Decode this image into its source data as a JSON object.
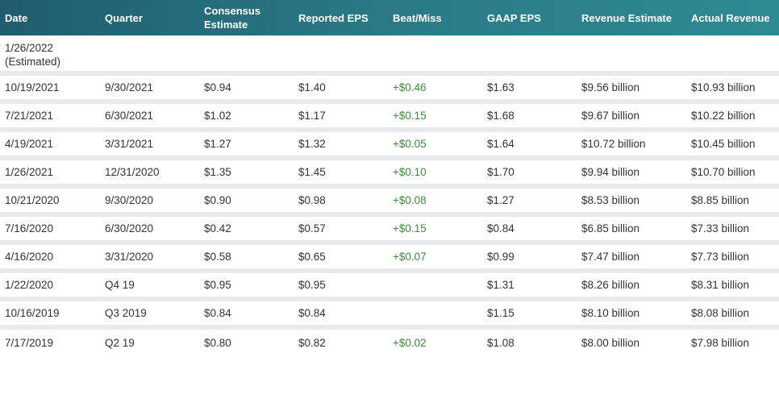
{
  "table": {
    "headers": {
      "date": "Date",
      "quarter": "Quarter",
      "consensus_line1": "Consensus",
      "consensus_line2": "Estimate",
      "reported_eps": "Reported EPS",
      "beat_miss": "Beat/Miss",
      "gaap_eps": "GAAP EPS",
      "revenue_estimate": "Revenue Estimate",
      "actual_revenue": "Actual Revenue"
    },
    "estimated_row": {
      "date": "1/26/2022",
      "note": "(Estimated)"
    },
    "rows": [
      {
        "date": "10/19/2021",
        "quarter": "9/30/2021",
        "consensus": "$0.94",
        "reported": "$1.40",
        "beat": "+$0.46",
        "gaap": "$1.63",
        "rev_est": "$9.56 billion",
        "actual_rev": "$10.93 billion"
      },
      {
        "date": "7/21/2021",
        "quarter": "6/30/2021",
        "consensus": "$1.02",
        "reported": "$1.17",
        "beat": "+$0.15",
        "gaap": "$1.68",
        "rev_est": "$9.67 billion",
        "actual_rev": "$10.22 billion"
      },
      {
        "date": "4/19/2021",
        "quarter": "3/31/2021",
        "consensus": "$1.27",
        "reported": "$1.32",
        "beat": "+$0.05",
        "gaap": "$1.64",
        "rev_est": "$10.72 billion",
        "actual_rev": "$10.45 billion"
      },
      {
        "date": "1/26/2021",
        "quarter": "12/31/2020",
        "consensus": "$1.35",
        "reported": "$1.45",
        "beat": "+$0.10",
        "gaap": "$1.70",
        "rev_est": "$9.94 billion",
        "actual_rev": "$10.70 billion"
      },
      {
        "date": "10/21/2020",
        "quarter": "9/30/2020",
        "consensus": "$0.90",
        "reported": "$0.98",
        "beat": "+$0.08",
        "gaap": "$1.27",
        "rev_est": "$8.53 billion",
        "actual_rev": "$8.85 billion"
      },
      {
        "date": "7/16/2020",
        "quarter": "6/30/2020",
        "consensus": "$0.42",
        "reported": "$0.57",
        "beat": "+$0.15",
        "gaap": "$0.84",
        "rev_est": "$6.85 billion",
        "actual_rev": "$7.33 billion"
      },
      {
        "date": "4/16/2020",
        "quarter": "3/31/2020",
        "consensus": "$0.58",
        "reported": "$0.65",
        "beat": "+$0.07",
        "gaap": "$0.99",
        "rev_est": "$7.47 billion",
        "actual_rev": "$7.73 billion"
      },
      {
        "date": "1/22/2020",
        "quarter": "Q4 19",
        "consensus": "$0.95",
        "reported": "$0.95",
        "beat": "",
        "gaap": "$1.31",
        "rev_est": "$8.26 billion",
        "actual_rev": "$8.31 billion"
      },
      {
        "date": "10/16/2019",
        "quarter": "Q3 2019",
        "consensus": "$0.84",
        "reported": "$0.84",
        "beat": "",
        "gaap": "$1.15",
        "rev_est": "$8.10 billion",
        "actual_rev": "$8.08 billion"
      },
      {
        "date": "7/17/2019",
        "quarter": "Q2 19",
        "consensus": "$0.80",
        "reported": "$0.82",
        "beat": "+$0.02",
        "gaap": "$1.08",
        "rev_est": "$8.00 billion",
        "actual_rev": "$7.98 billion"
      }
    ]
  },
  "colors": {
    "header_bg_start": "#1f5d6e",
    "header_bg_end": "#2e8a93",
    "header_text": "#ffffff",
    "beat_text": "#3c8c3c",
    "row_separator": "#e8eaeb"
  }
}
